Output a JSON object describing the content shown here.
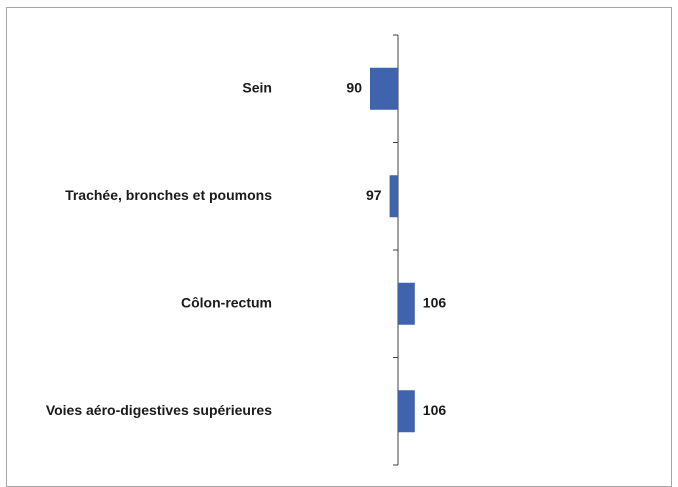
{
  "chart_data": {
    "type": "bar",
    "orientation": "horizontal",
    "categories": [
      "Sein",
      "Trachée, bronches et poumons",
      "Côlon-rectum",
      "Voies aéro-digestives supérieures"
    ],
    "values": [
      90,
      97,
      106,
      106
    ],
    "color": "#3f63ac",
    "xlim": [
      80,
      120
    ]
  }
}
